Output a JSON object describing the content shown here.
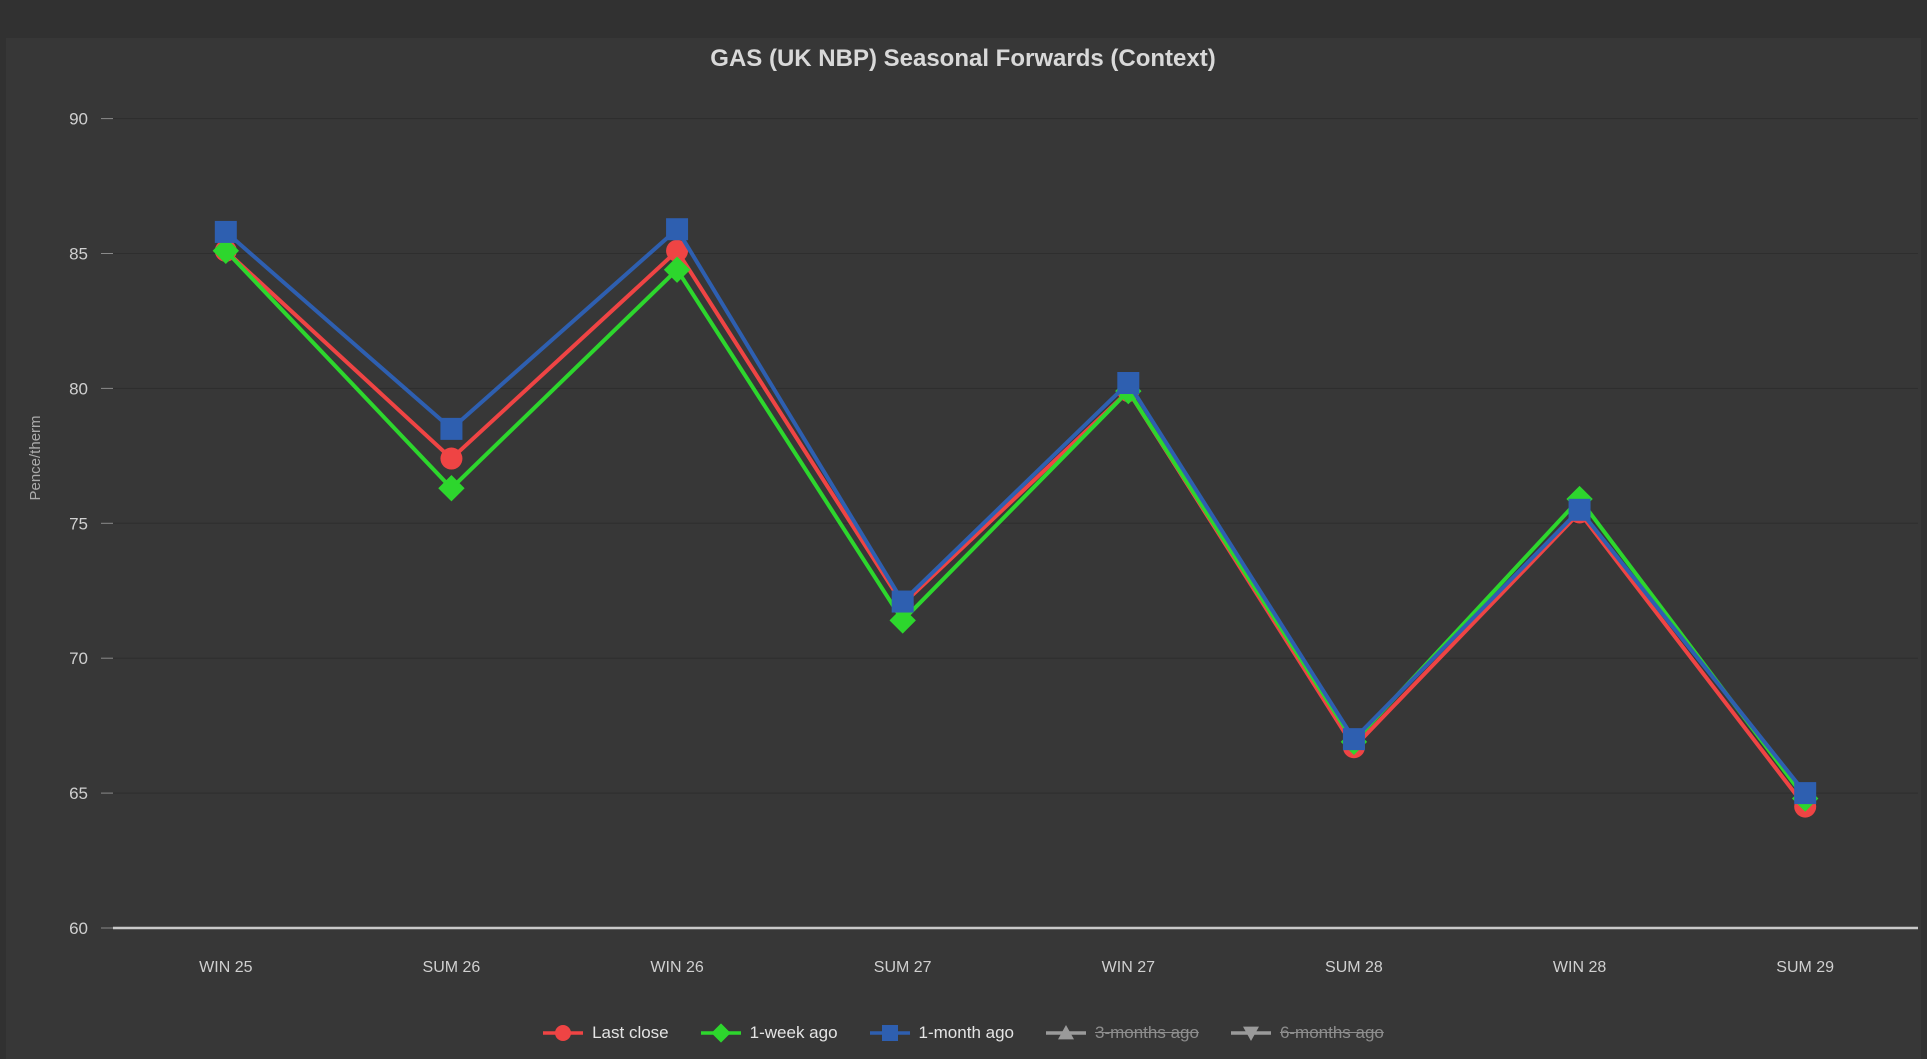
{
  "window": {
    "title": "GAS (UK NBP) Seasonal Forwards (Context)"
  },
  "colors": {
    "background_outer": "#313131",
    "background_panel": "#373737",
    "gridline": "#2e2e2e",
    "axis_line": "#c9c9c9",
    "tick_mark": "#8a8a8a",
    "tick_label": "#d0d0d0",
    "title_text": "#d9d9d9",
    "axis_title_text": "#ababab",
    "legend_text": "#e4e4e4",
    "legend_text_disabled": "#8d8d8d",
    "series_last_close": "#ef4444",
    "series_1_week": "#2dd62d",
    "series_1_month": "#2e5fb0",
    "series_disabled": "#9a9a9a"
  },
  "chart_data": {
    "type": "line",
    "title": "GAS (UK NBP) Seasonal Forwards (Context)",
    "xlabel": "",
    "ylabel": "Pence/therm",
    "categories": [
      "WIN 25",
      "SUM 26",
      "WIN 26",
      "SUM 27",
      "WIN 27",
      "SUM 28",
      "WIN 28",
      "SUM 29"
    ],
    "y_ticks": [
      60,
      65,
      70,
      75,
      80,
      85,
      90
    ],
    "ylim": [
      60,
      91
    ],
    "grid": true,
    "legend_position": "bottom",
    "series": [
      {
        "name": "Last close",
        "marker": "circle",
        "color": "#ef4444",
        "enabled": true,
        "values": [
          85.1,
          77.4,
          85.1,
          72.0,
          79.9,
          66.7,
          75.4,
          64.5
        ]
      },
      {
        "name": "1-week ago",
        "marker": "diamond",
        "color": "#2dd62d",
        "enabled": true,
        "values": [
          85.1,
          76.3,
          84.4,
          71.4,
          79.9,
          66.9,
          75.9,
          64.8
        ]
      },
      {
        "name": "1-month ago",
        "marker": "square",
        "color": "#2e5fb0",
        "enabled": true,
        "values": [
          85.8,
          78.5,
          85.9,
          72.1,
          80.2,
          67.0,
          75.5,
          65.0
        ]
      },
      {
        "name": "3-months ago",
        "marker": "triangle-up",
        "color": "#9a9a9a",
        "enabled": false,
        "values": null
      },
      {
        "name": "6-months ago",
        "marker": "triangle-down",
        "color": "#9a9a9a",
        "enabled": false,
        "values": null
      }
    ]
  }
}
